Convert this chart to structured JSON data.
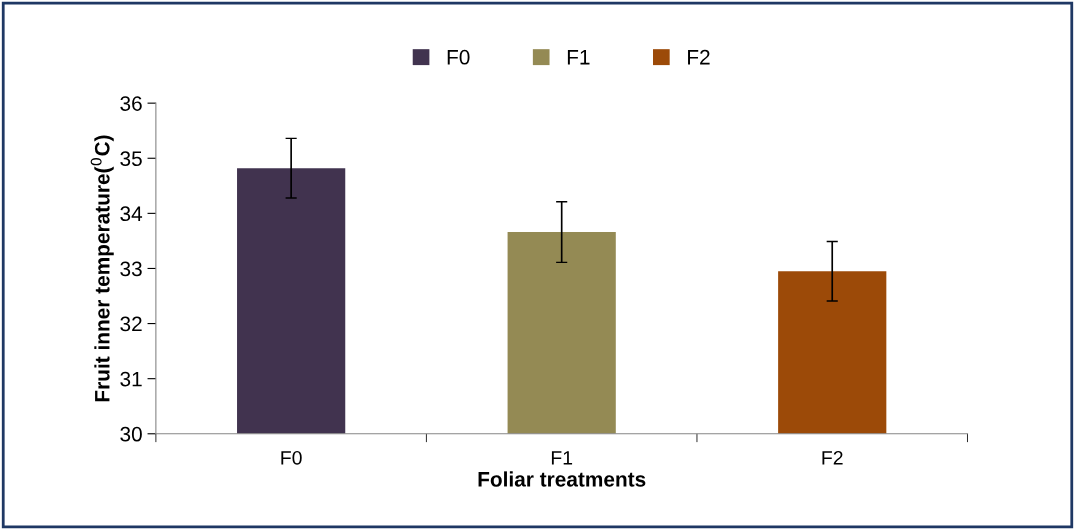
{
  "chart_data": {
    "type": "bar",
    "xlabel": "Foliar treatments",
    "ylabel": "Fruit inner temperature($^{0}$C)",
    "categories": [
      "F0",
      "F1",
      "F2"
    ],
    "series": [
      {
        "name": "F0",
        "color": "#41334f",
        "values": [
          34.82,
          null,
          null
        ],
        "errors": [
          0.54,
          null,
          null
        ]
      },
      {
        "name": "F1",
        "color": "#948a54",
        "values": [
          null,
          33.66,
          null
        ],
        "errors": [
          null,
          0.55,
          null
        ]
      },
      {
        "name": "F2",
        "color": "#9c4a08",
        "values": [
          null,
          null,
          32.95
        ],
        "errors": [
          null,
          null,
          0.54
        ]
      }
    ],
    "ylim": [
      30,
      36
    ],
    "yticks": [
      30,
      31,
      32,
      33,
      34,
      35,
      36
    ],
    "grid": false,
    "legend": "top"
  }
}
